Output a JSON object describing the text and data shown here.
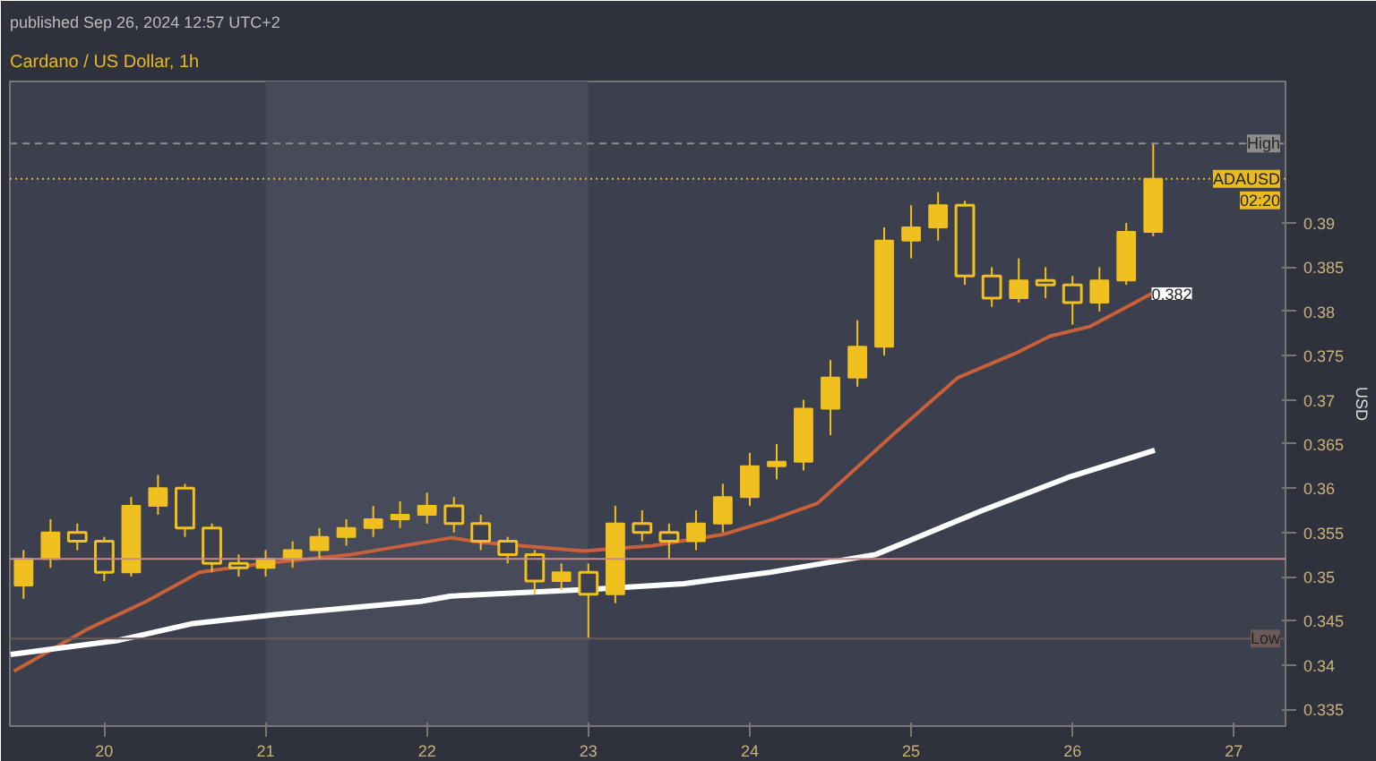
{
  "chart_data": {
    "type": "candlestick",
    "title": "Cardano / US Dollar, 1h",
    "subtitle": "published Sep 26, 2024 12:57 UTC+2",
    "ylabel": "USD",
    "color": "#f0c020",
    "x": [
      19.5,
      19.667,
      19.833,
      20,
      20.167,
      20.333,
      20.5,
      20.667,
      20.833,
      21,
      21.167,
      21.333,
      21.5,
      21.667,
      21.833,
      22,
      22.167,
      22.333,
      22.5,
      22.667,
      22.833,
      23,
      23.167,
      23.333,
      23.5,
      23.667,
      23.833,
      24,
      24.167,
      24.333,
      24.5,
      24.667,
      24.833,
      25,
      25.167,
      25.333,
      25.5,
      25.667,
      25.833,
      26,
      26.167,
      26.333,
      26.5
    ],
    "ohlc": [
      [
        0.349,
        0.353,
        0.3475,
        0.352
      ],
      [
        0.352,
        0.3565,
        0.351,
        0.355
      ],
      [
        0.355,
        0.356,
        0.353,
        0.354
      ],
      [
        0.354,
        0.3545,
        0.3495,
        0.3505
      ],
      [
        0.3505,
        0.359,
        0.35,
        0.358
      ],
      [
        0.358,
        0.3615,
        0.357,
        0.36
      ],
      [
        0.36,
        0.3605,
        0.3545,
        0.3555
      ],
      [
        0.3555,
        0.356,
        0.3505,
        0.3515
      ],
      [
        0.3515,
        0.3525,
        0.35,
        0.351
      ],
      [
        0.351,
        0.353,
        0.35,
        0.352
      ],
      [
        0.352,
        0.354,
        0.351,
        0.353
      ],
      [
        0.353,
        0.3555,
        0.352,
        0.3545
      ],
      [
        0.3545,
        0.3565,
        0.3535,
        0.3555
      ],
      [
        0.3555,
        0.358,
        0.3545,
        0.3565
      ],
      [
        0.3565,
        0.3585,
        0.3555,
        0.357
      ],
      [
        0.357,
        0.3595,
        0.356,
        0.358
      ],
      [
        0.358,
        0.359,
        0.355,
        0.356
      ],
      [
        0.356,
        0.357,
        0.353,
        0.354
      ],
      [
        0.354,
        0.3545,
        0.3515,
        0.3525
      ],
      [
        0.3525,
        0.353,
        0.348,
        0.3495
      ],
      [
        0.3495,
        0.3515,
        0.3485,
        0.3505
      ],
      [
        0.3505,
        0.3515,
        0.343,
        0.348
      ],
      [
        0.348,
        0.358,
        0.347,
        0.356
      ],
      [
        0.356,
        0.3575,
        0.354,
        0.355
      ],
      [
        0.355,
        0.356,
        0.352,
        0.354
      ],
      [
        0.354,
        0.3575,
        0.353,
        0.356
      ],
      [
        0.356,
        0.3605,
        0.355,
        0.359
      ],
      [
        0.359,
        0.364,
        0.358,
        0.3625
      ],
      [
        0.3625,
        0.365,
        0.361,
        0.363
      ],
      [
        0.363,
        0.37,
        0.362,
        0.369
      ],
      [
        0.369,
        0.3745,
        0.366,
        0.3725
      ],
      [
        0.3725,
        0.379,
        0.3715,
        0.376
      ],
      [
        0.376,
        0.3895,
        0.375,
        0.388
      ],
      [
        0.388,
        0.392,
        0.386,
        0.3895
      ],
      [
        0.3895,
        0.3935,
        0.388,
        0.392
      ],
      [
        0.392,
        0.3925,
        0.383,
        0.384
      ],
      [
        0.384,
        0.385,
        0.3805,
        0.3815
      ],
      [
        0.3815,
        0.386,
        0.381,
        0.3835
      ],
      [
        0.3835,
        0.385,
        0.3815,
        0.383
      ],
      [
        0.383,
        0.384,
        0.3785,
        0.381
      ],
      [
        0.381,
        0.385,
        0.38,
        0.3835
      ],
      [
        0.3835,
        0.39,
        0.383,
        0.389
      ],
      [
        0.389,
        0.399,
        0.3885,
        0.395
      ]
    ],
    "series": [
      {
        "type": "line",
        "color": "#c8603a",
        "x": [
          19.44,
          19.9,
          20.26,
          20.59,
          20.99,
          21.53,
          22.15,
          22.32,
          22.97,
          23.4,
          23.84,
          24.13,
          24.42,
          24.89,
          25.29,
          25.64,
          25.86,
          26.11,
          26.49
        ],
        "values": [
          0.3393,
          0.3441,
          0.3472,
          0.3505,
          0.3515,
          0.3525,
          0.3544,
          0.3539,
          0.3529,
          0.3535,
          0.3548,
          0.3564,
          0.3583,
          0.3661,
          0.3725,
          0.3752,
          0.3772,
          0.3783,
          0.382
        ]
      },
      {
        "type": "line",
        "color": "#ffffff",
        "x": [
          19.42,
          20.09,
          20.55,
          21.06,
          21.96,
          22.15,
          23.04,
          23.59,
          24.13,
          24.78,
          25.43,
          25.97,
          26.51
        ],
        "values": [
          0.3412,
          0.3428,
          0.3447,
          0.3457,
          0.3472,
          0.3478,
          0.3486,
          0.3492,
          0.3505,
          0.3525,
          0.3574,
          0.3612,
          0.3643
        ]
      }
    ],
    "xlim": [
      19.415,
      27.32
    ],
    "xticks": [
      20,
      21,
      22,
      23,
      24,
      25,
      26,
      27
    ],
    "ylim": [
      0.3331,
      0.406
    ],
    "yticks": [
      0.335,
      0.34,
      0.345,
      0.35,
      0.355,
      0.36,
      0.365,
      0.37,
      0.375,
      0.38,
      0.385,
      0.39
    ],
    "bands": [
      {
        "axis": "x",
        "from": 21,
        "to": 23,
        "color": "#474a58"
      }
    ],
    "ref_lines": [
      {
        "axis": "y",
        "value": 0.399,
        "label": "High",
        "color": "#8c8c8c",
        "line_style": "dashed"
      },
      {
        "axis": "y",
        "value": 0.395,
        "label": "ADAUSD",
        "color": "#e8b923",
        "line_style": "dotted"
      },
      {
        "axis": "y",
        "value": 0.352,
        "color": "#c98a8a"
      },
      {
        "axis": "y",
        "value": 0.343,
        "label": "Low",
        "color": "#6b5a5a"
      }
    ],
    "annotations": [
      "02:20",
      {
        "text": "0.382",
        "x": 26.49,
        "y": 0.382
      }
    ]
  }
}
